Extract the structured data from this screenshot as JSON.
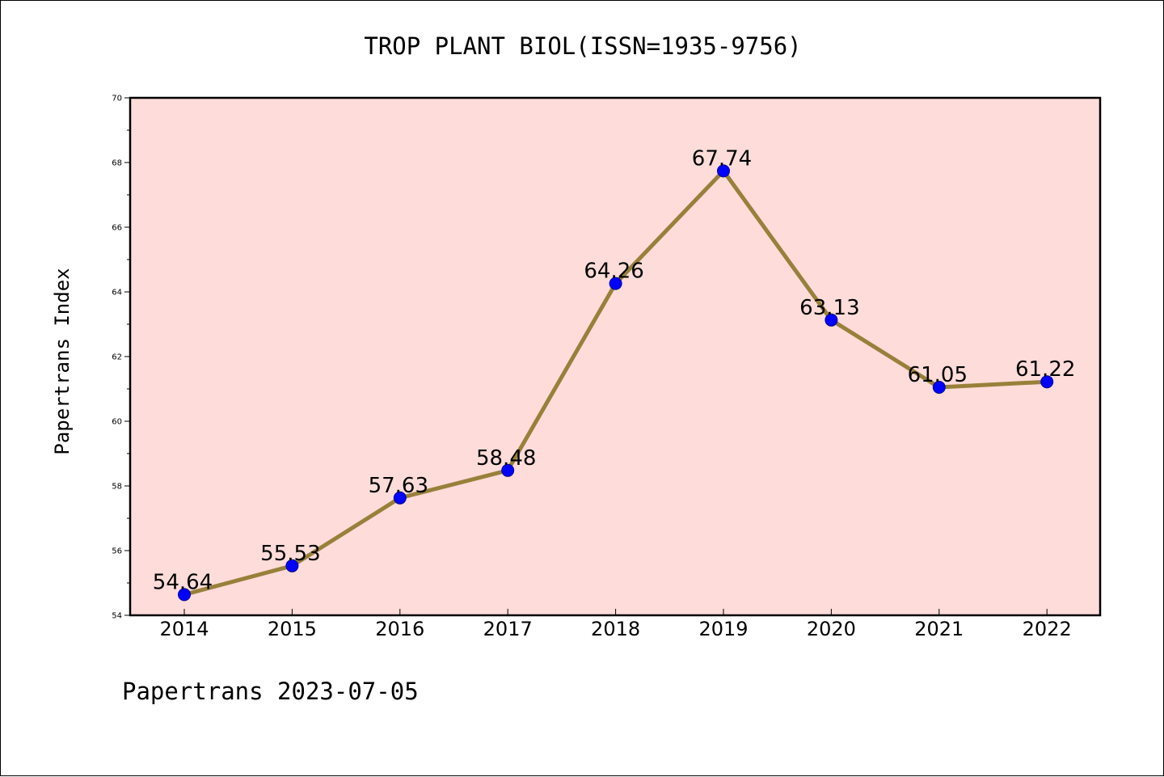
{
  "chart_data": {
    "type": "line",
    "title": "TROP PLANT BIOL(ISSN=1935-9756)",
    "ylabel": "Papertrans Index",
    "xlabel": "",
    "categories": [
      "2014",
      "2015",
      "2016",
      "2017",
      "2018",
      "2019",
      "2020",
      "2021",
      "2022"
    ],
    "values": [
      54.64,
      55.53,
      57.63,
      58.48,
      64.26,
      67.74,
      63.13,
      61.05,
      61.22
    ],
    "data_labels": [
      "54.64",
      "55.53",
      "57.63",
      "58.48",
      "64.26",
      "67.74",
      "63.13",
      "61.05",
      "61.22"
    ],
    "ylim": [
      54,
      70
    ],
    "yticks": [
      54,
      56,
      58,
      60,
      62,
      64,
      66,
      68,
      70
    ],
    "ytick_labels": [
      "54",
      "56",
      "58",
      "60",
      "62",
      "64",
      "66",
      "68",
      "70"
    ],
    "grid": false,
    "legend": "none",
    "colors": {
      "plot_background": "#fddcd9",
      "line": "#98803a",
      "marker": "#0000ff",
      "marker_edge": "#00008b"
    }
  },
  "footer": {
    "text": "Papertrans 2023-07-05"
  }
}
